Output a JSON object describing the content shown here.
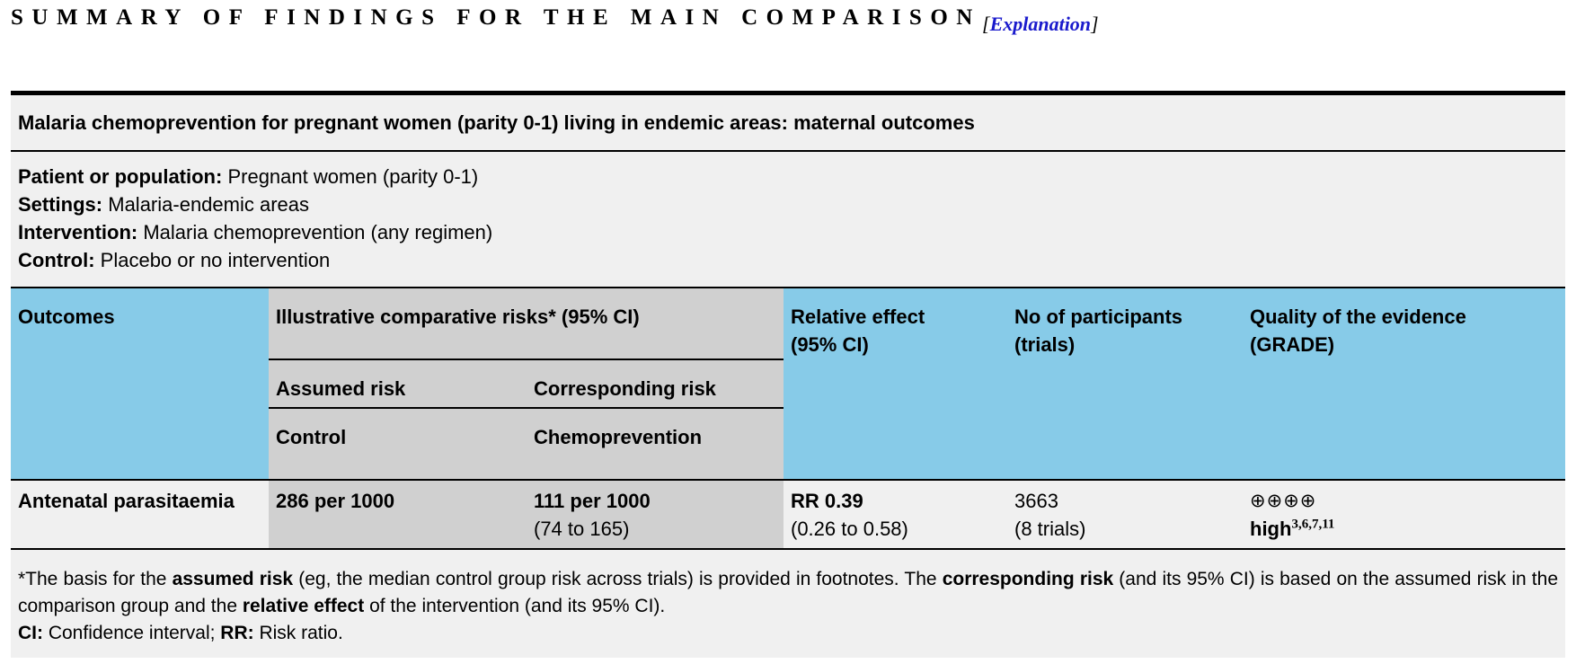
{
  "header": {
    "title": "SUMMARY OF FINDINGS FOR THE MAIN COMPARISON",
    "explanation_open": "[",
    "explanation_link": "Explanation",
    "explanation_close": "]"
  },
  "table": {
    "title": "Malaria chemoprevention for pregnant women (parity 0-1) living in endemic areas: maternal outcomes",
    "pico": [
      {
        "label": "Patient or population:",
        "value": "Pregnant women (parity 0-1)"
      },
      {
        "label": "Settings:",
        "value": "Malaria-endemic areas"
      },
      {
        "label": "Intervention:",
        "value": "Malaria chemoprevention (any regimen)"
      },
      {
        "label": "Control:",
        "value": "Placebo or no intervention"
      }
    ],
    "columns": {
      "outcomes": "Outcomes",
      "risks": "Illustrative comparative risks* (95% CI)",
      "assumed": "Assumed risk",
      "corresponding": "Corresponding risk",
      "control": "Control",
      "chemoprevention": "Chemoprevention",
      "relative_line1": "Relative effect",
      "relative_line2": "(95% CI)",
      "participants_line1": "No of participants",
      "participants_line2": "(trials)",
      "quality_line1": "Quality of the evidence",
      "quality_line2": "(GRADE)"
    },
    "rows": [
      {
        "outcome": "Antenatal parasitaemia",
        "assumed": "286 per 1000",
        "corresponding": "111 per 1000",
        "corresponding_ci": "(74 to 165)",
        "relative": "RR 0.39",
        "relative_ci": "(0.26 to 0.58)",
        "participants": "3663",
        "trials": "(8 trials)",
        "quality_symbols": "⊕⊕⊕⊕",
        "quality": "high",
        "quality_refs": "3,6,7,11"
      }
    ],
    "footnotes": {
      "p1": "*The basis for the ",
      "b1": "assumed risk",
      "p2": " (eg, the median control group risk across trials) is provided in footnotes. The ",
      "b2": "corresponding risk",
      "p3": " (and its 95% CI) is based on the assumed risk in the comparison group and the ",
      "b3": "relative effect",
      "p4": " of the intervention (and its 95% CI).",
      "ci_label": "CI:",
      "ci_text": " Confidence interval; ",
      "rr_label": "RR:",
      "rr_text": " Risk ratio."
    }
  },
  "colors": {
    "header_blue": "#87cbe8",
    "header_grey": "#d0d0d0",
    "panel_grey": "#f0f0f0",
    "link_blue": "#1a1acc"
  }
}
